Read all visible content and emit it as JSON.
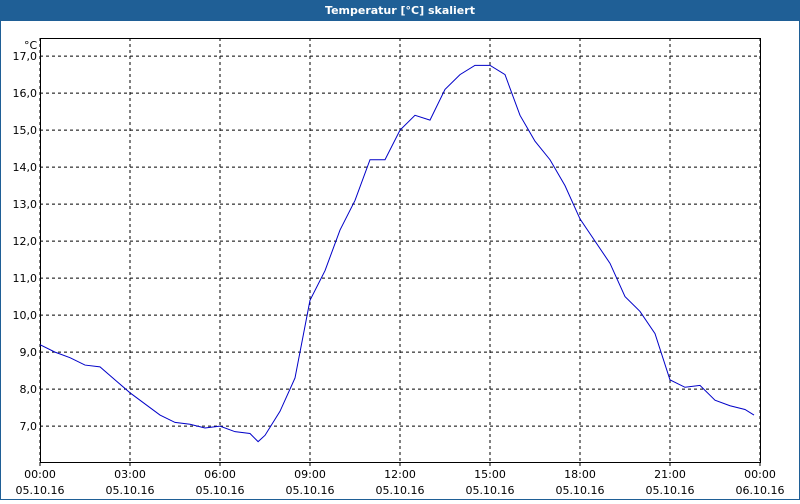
{
  "chart_data": {
    "type": "line",
    "title": "Temperatur [°C] skaliert",
    "y_unit": "°C",
    "x": [
      0,
      0.5,
      1,
      1.5,
      2,
      2.5,
      3,
      3.5,
      4,
      4.5,
      5,
      5.5,
      6,
      6.5,
      7,
      7.27,
      7.5,
      8,
      8.5,
      9,
      9.5,
      10,
      10.5,
      11,
      11.5,
      12,
      12.5,
      13,
      13.5,
      14,
      14.5,
      15,
      15.5,
      16,
      16.5,
      17,
      17.5,
      18,
      18.5,
      19,
      19.5,
      20,
      20.5,
      21,
      21.5,
      22,
      22.5,
      23,
      23.5,
      23.8
    ],
    "series": [
      {
        "name": "Temperatur",
        "color": "#0000c8",
        "values": [
          9.2,
          9.0,
          8.85,
          8.65,
          8.6,
          8.25,
          7.9,
          7.6,
          7.3,
          7.1,
          7.05,
          6.95,
          7.0,
          6.85,
          6.8,
          6.58,
          6.75,
          7.4,
          8.3,
          10.4,
          11.2,
          12.3,
          13.1,
          14.2,
          14.2,
          15.0,
          15.4,
          15.27,
          16.1,
          16.5,
          16.75,
          16.75,
          16.5,
          15.4,
          14.7,
          14.2,
          13.5,
          12.6,
          12.0,
          11.4,
          10.5,
          10.1,
          9.5,
          8.25,
          8.05,
          8.1,
          7.7,
          7.55,
          7.45,
          7.3
        ]
      }
    ],
    "xlim": [
      0,
      24
    ],
    "ylim": [
      6.03,
      17.49
    ],
    "xticks": [
      {
        "value": 0,
        "label": "00:00"
      },
      {
        "value": 3,
        "label": "03:00"
      },
      {
        "value": 6,
        "label": "06:00"
      },
      {
        "value": 9,
        "label": "09:00"
      },
      {
        "value": 12,
        "label": "12:00"
      },
      {
        "value": 15,
        "label": "15:00"
      },
      {
        "value": 18,
        "label": "18:00"
      },
      {
        "value": 21,
        "label": "21:00"
      },
      {
        "value": 24,
        "label": "00:00"
      }
    ],
    "xtick_dates": [
      "05.10.16",
      "05.10.16",
      "05.10.16",
      "05.10.16",
      "05.10.16",
      "05.10.16",
      "05.10.16",
      "05.10.16",
      "06.10.16"
    ],
    "yticks": [
      {
        "value": 7,
        "label": "7,0"
      },
      {
        "value": 8,
        "label": "8,0"
      },
      {
        "value": 9,
        "label": "9,0"
      },
      {
        "value": 10,
        "label": "10,0"
      },
      {
        "value": 11,
        "label": "11,0"
      },
      {
        "value": 12,
        "label": "12,0"
      },
      {
        "value": 13,
        "label": "13,0"
      },
      {
        "value": 14,
        "label": "14,0"
      },
      {
        "value": 15,
        "label": "15,0"
      },
      {
        "value": 16,
        "label": "16,0"
      },
      {
        "value": 17,
        "label": "17,0"
      }
    ],
    "grid": true
  }
}
